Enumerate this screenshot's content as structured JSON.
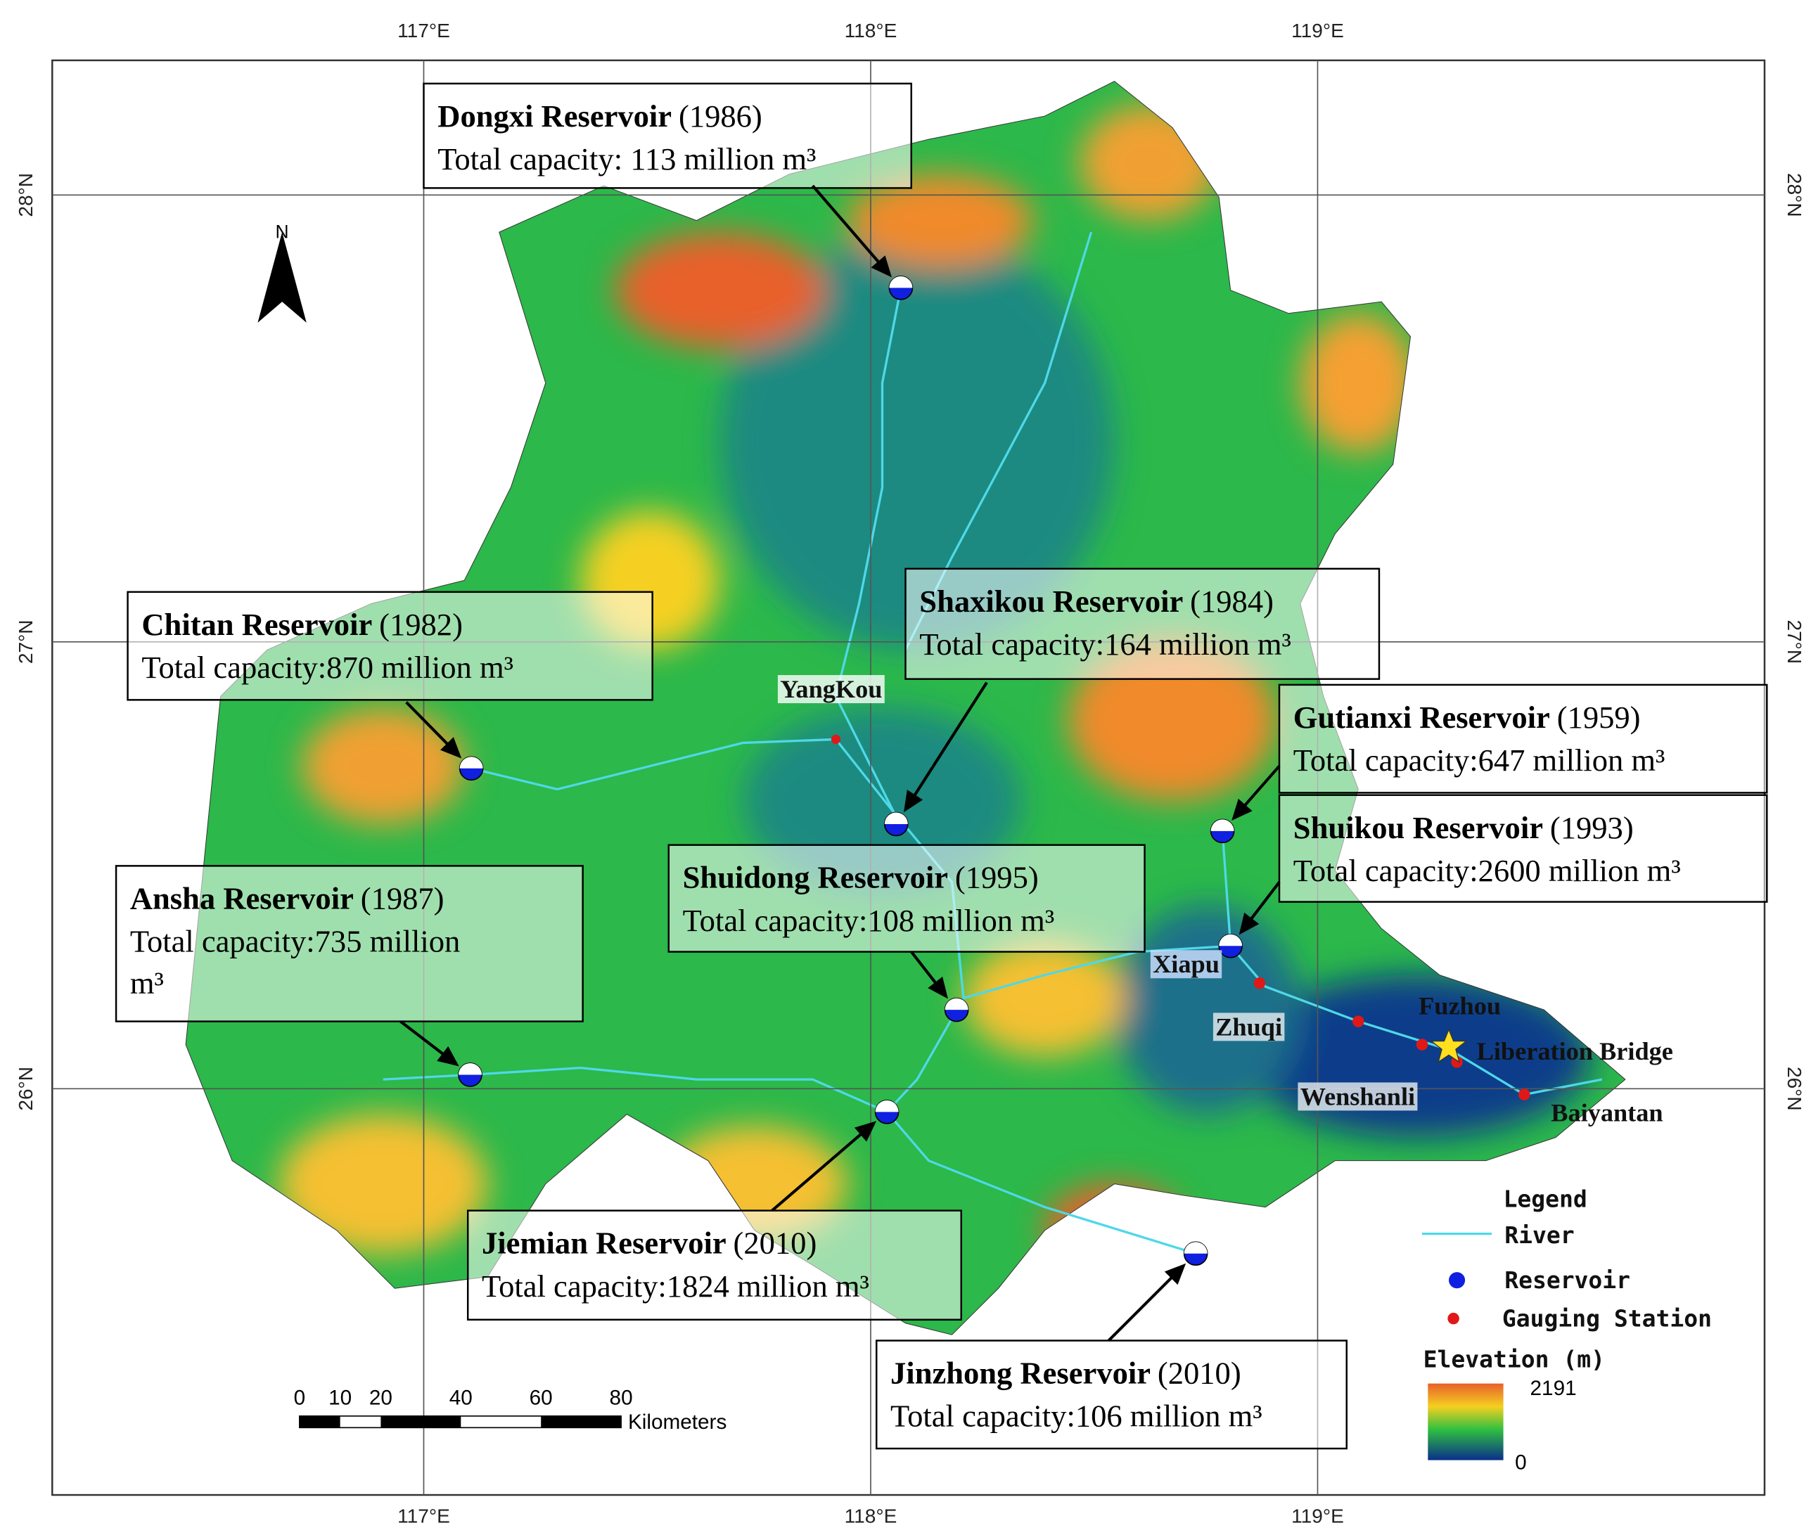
{
  "map": {
    "graticule": {
      "longitudes": [
        "117°E",
        "118°E",
        "119°E"
      ],
      "latitudes": [
        "28°N",
        "27°N",
        "26°N"
      ]
    },
    "north": "N",
    "reservoirs": [
      {
        "name": "Dongxi Reservoir",
        "year": "(1986)",
        "capacity": [
          "Total capacity: 113 million m³"
        ]
      },
      {
        "name": "Chitan Reservoir",
        "year": "(1982)",
        "capacity": [
          "Total capacity:870 million m³"
        ]
      },
      {
        "name": "Shaxikou Reservoir",
        "year": "(1984)",
        "capacity": [
          "Total capacity:164 million m³"
        ]
      },
      {
        "name": "Gutianxi Reservoir",
        "year": "(1959)",
        "capacity": [
          "Total capacity:647 million m³"
        ]
      },
      {
        "name": "Shuikou Reservoir",
        "year": "(1993)",
        "capacity": [
          "Total capacity:2600 million m³"
        ]
      },
      {
        "name": "Shuidong Reservoir",
        "year": "(1995)",
        "capacity": [
          "Total capacity:108 million m³"
        ]
      },
      {
        "name": "Ansha Reservoir",
        "year": "(1987)",
        "capacity": [
          "Total capacity:735 million",
          "m³"
        ]
      },
      {
        "name": "Jiemian Reservoir",
        "year": "(2010)",
        "capacity": [
          "Total capacity:1824 million m³"
        ]
      },
      {
        "name": "Jinzhong Reservoir",
        "year": "(2010)",
        "capacity": [
          "Total capacity:106 million m³"
        ]
      }
    ],
    "places": [
      "YangKou",
      "Xiapu",
      "Zhuqi",
      "Fuzhou",
      "Liberation Bridge",
      "Wenshanli",
      "Baiyantan"
    ],
    "legend": {
      "title": "Legend",
      "items": [
        "River",
        "Reservoir",
        "Gauging Station"
      ],
      "elevation_title": "Elevation (m)",
      "elevation_max": "2191",
      "elevation_min": "0"
    },
    "scale_bar": {
      "ticks": [
        "0",
        "10",
        "20",
        "40",
        "60",
        "80"
      ],
      "unit": "Kilometers"
    }
  }
}
